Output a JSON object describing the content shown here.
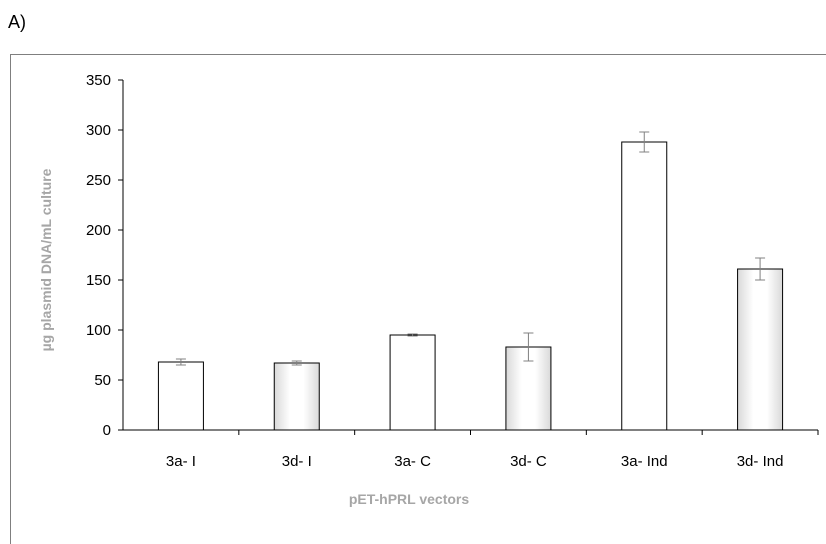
{
  "panel_label": "A)",
  "chart_data": {
    "type": "bar",
    "title": "",
    "xlabel": "pET-hPRL vectors",
    "ylabel": "µg plasmid DNA/mL culture",
    "ylim": [
      0,
      350
    ],
    "yticks": [
      0,
      50,
      100,
      150,
      200,
      250,
      300,
      350
    ],
    "categories": [
      "3a- I",
      "3d- I",
      "3a- C",
      "3d- C",
      "3a- Ind",
      "3d- Ind"
    ],
    "values": [
      68,
      67,
      95,
      83,
      288,
      161
    ],
    "errors": [
      3,
      2,
      1,
      14,
      10,
      11
    ],
    "fills": [
      "plain",
      "shaded",
      "plain",
      "shaded",
      "plain",
      "shaded"
    ],
    "grid": false,
    "legend": "none"
  }
}
